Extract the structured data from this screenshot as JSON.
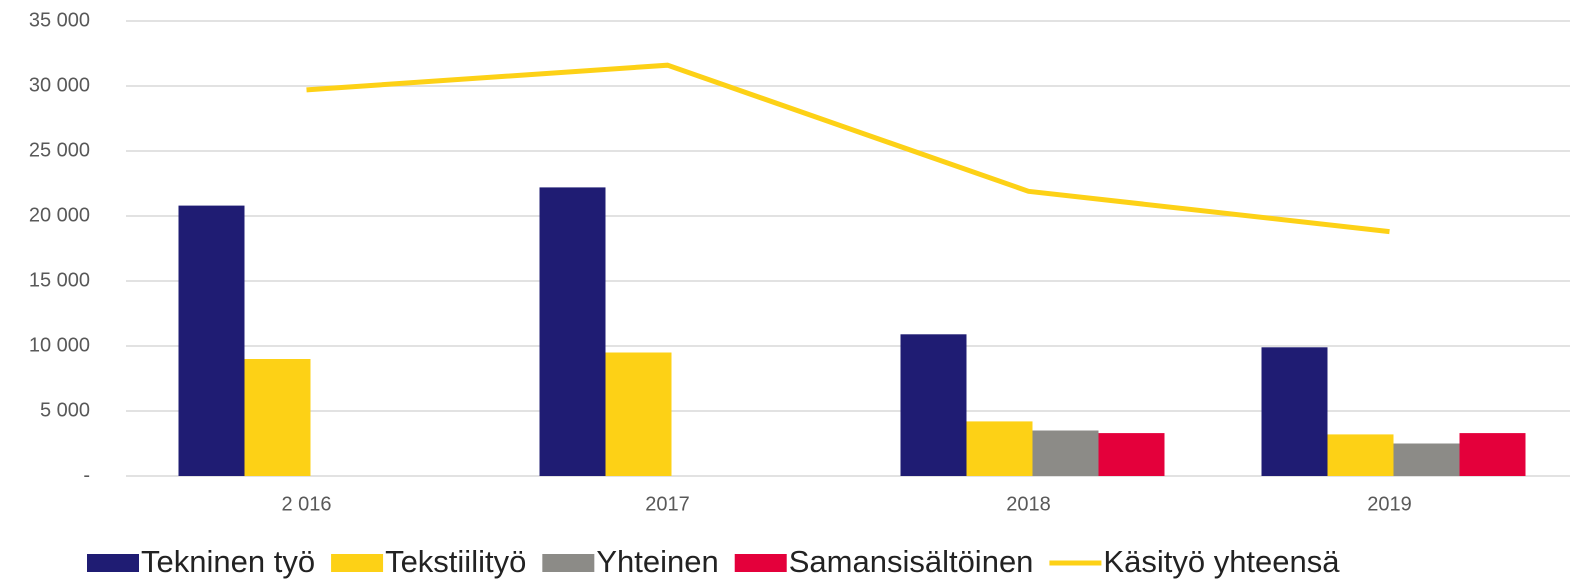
{
  "chart_data": {
    "type": "bar",
    "categories": [
      "2 016",
      "2017",
      "2018",
      "2019"
    ],
    "series": [
      {
        "name": "Tekninen työ",
        "color": "#1f1c73",
        "values": [
          20800,
          22200,
          10900,
          9900
        ]
      },
      {
        "name": "Tekstiilityö",
        "color": "#fdd116",
        "values": [
          9000,
          9500,
          4200,
          3200
        ]
      },
      {
        "name": "Yhteinen",
        "color": "#8c8b87",
        "values": [
          null,
          null,
          3500,
          2500
        ]
      },
      {
        "name": "Samansisältöinen",
        "color": "#e4003b",
        "values": [
          null,
          null,
          3300,
          3300
        ]
      },
      {
        "name": "Käsityö yhteensä",
        "color": "#fdd116",
        "type": "line",
        "values": [
          29700,
          31600,
          21900,
          18800
        ]
      }
    ],
    "ylim": [
      0,
      35000
    ],
    "yticks": [
      {
        "value": 0,
        "label": "-"
      },
      {
        "value": 5000,
        "label": "5 000"
      },
      {
        "value": 10000,
        "label": "10 000"
      },
      {
        "value": 15000,
        "label": "15 000"
      },
      {
        "value": 20000,
        "label": "20 000"
      },
      {
        "value": 25000,
        "label": "25 000"
      },
      {
        "value": 30000,
        "label": "30 000"
      },
      {
        "value": 35000,
        "label": "35 000"
      }
    ],
    "grid": true,
    "legend": "bottom"
  }
}
